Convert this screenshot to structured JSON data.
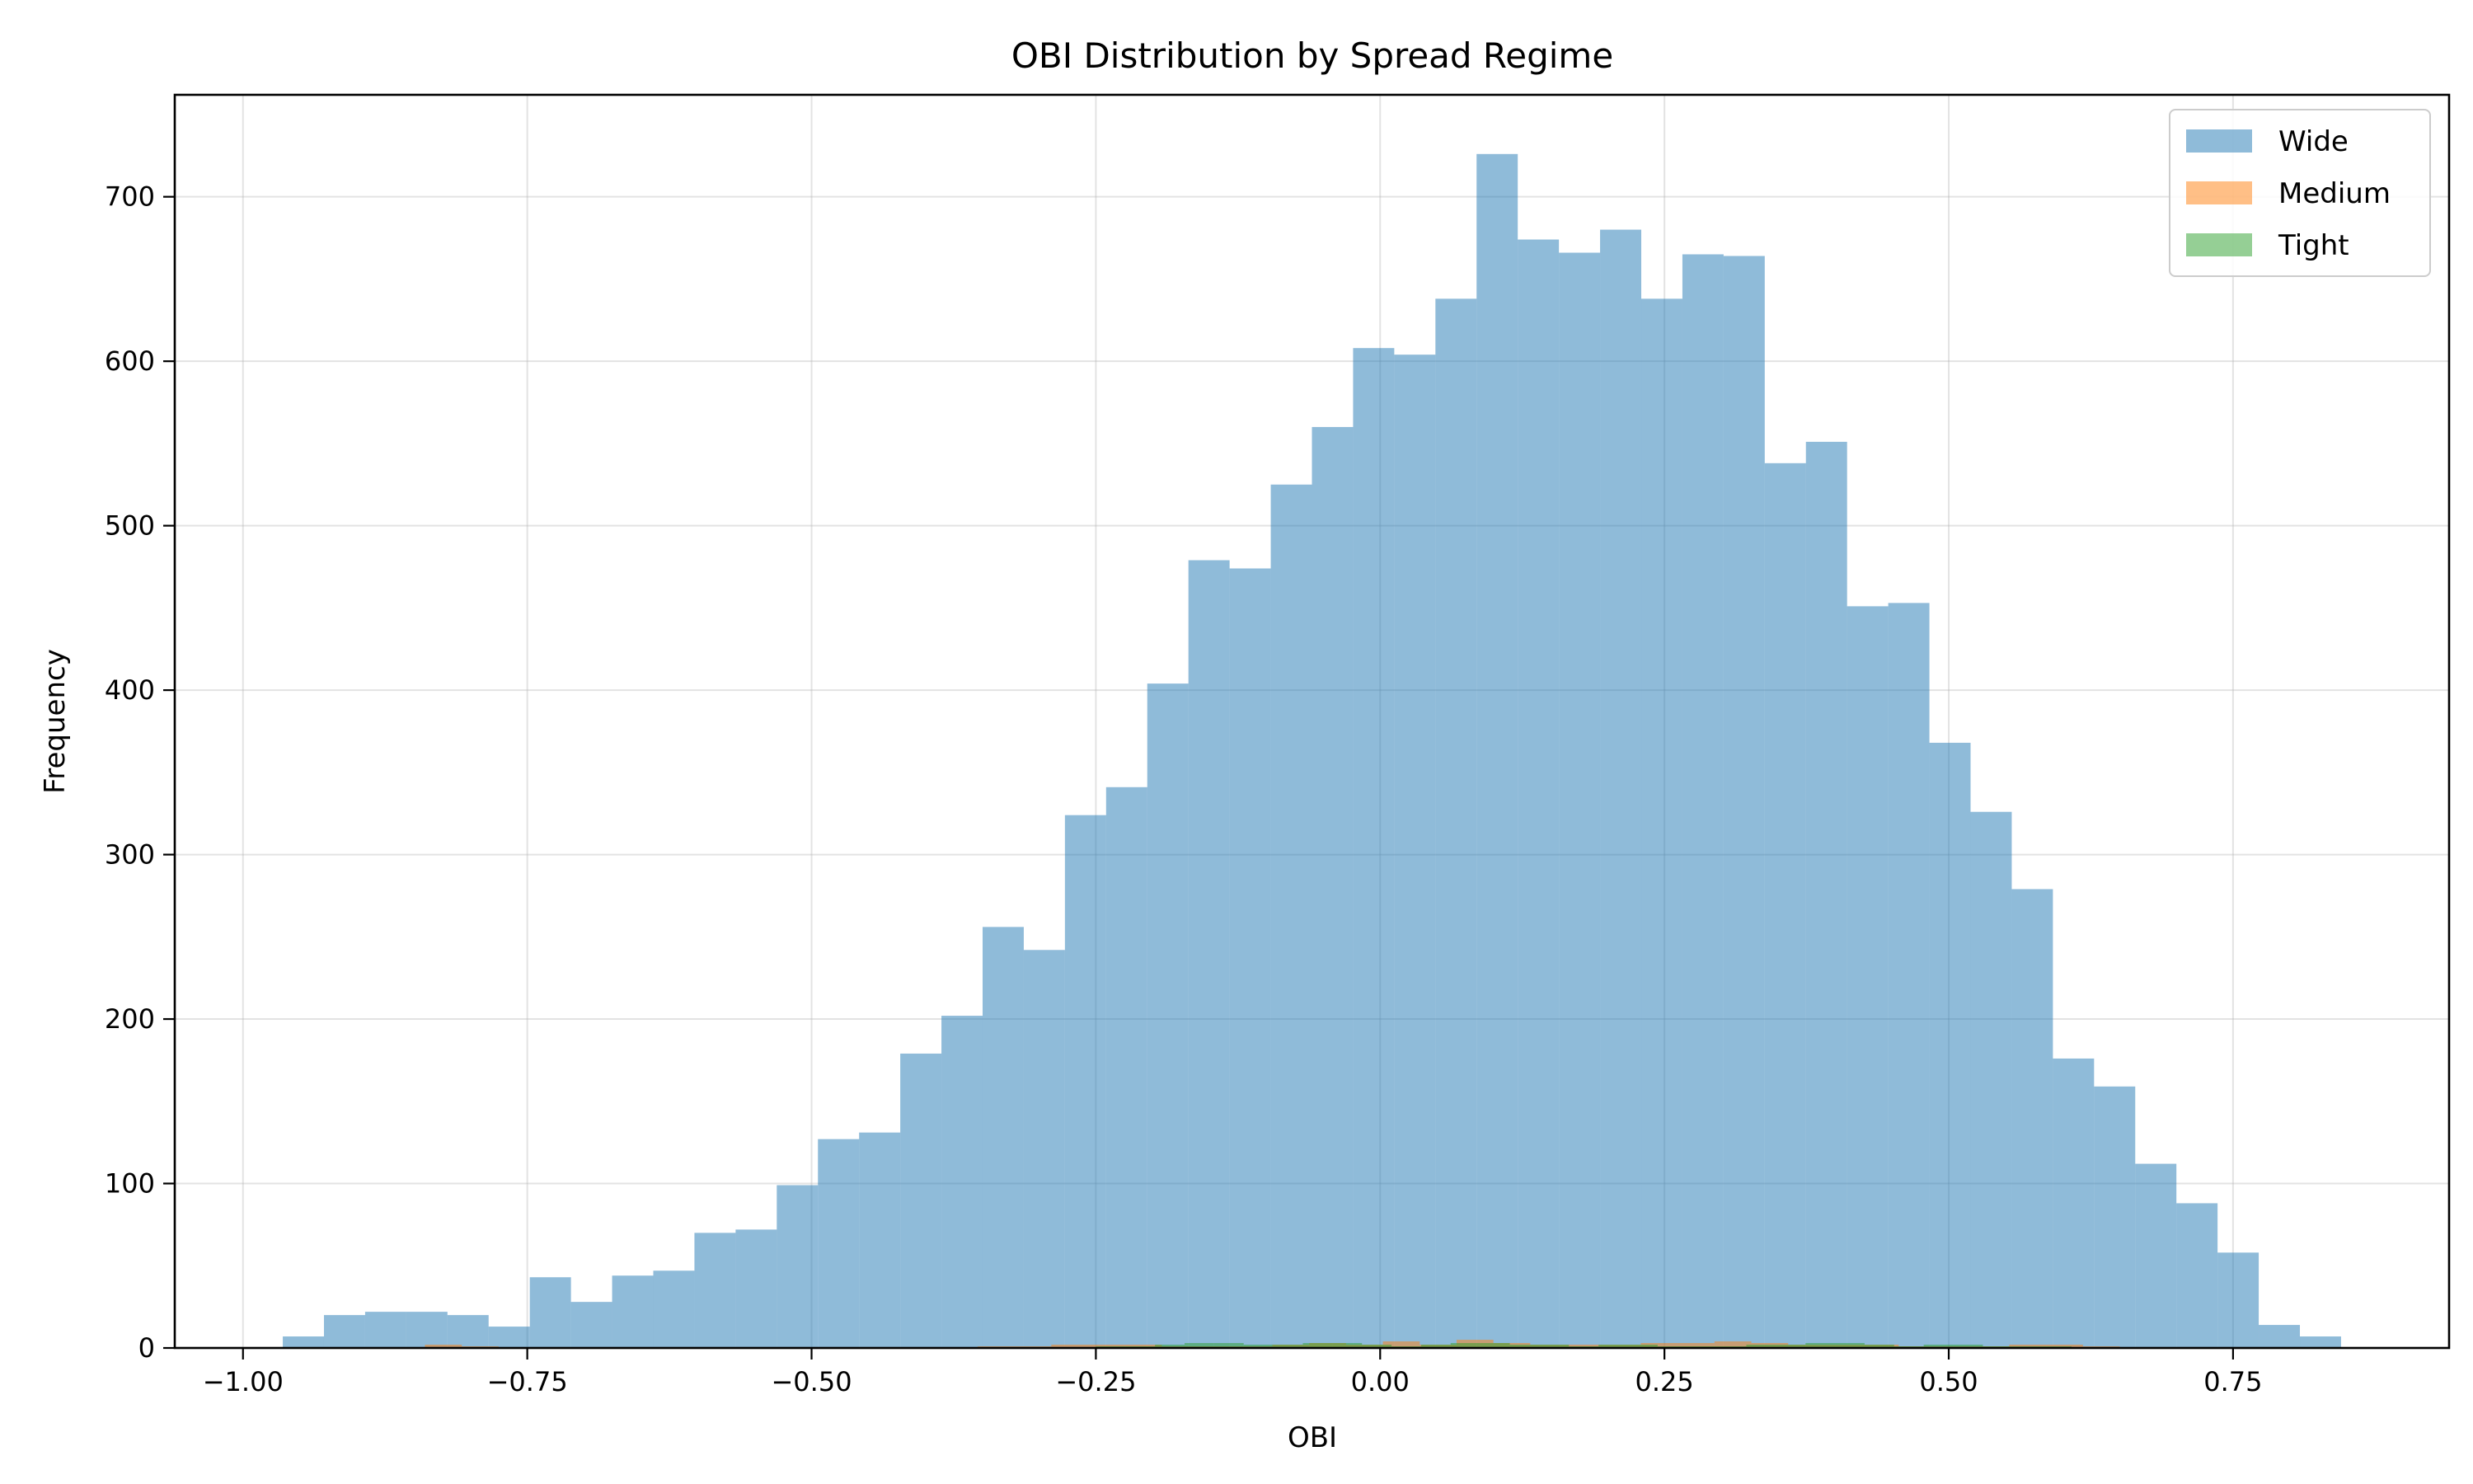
{
  "chart_data": {
    "type": "histogram",
    "title": "OBI Distribution by Spread Regime",
    "xlabel": "OBI",
    "ylabel": "Frequency",
    "xlim": [
      -1.06,
      0.94
    ],
    "ylim": [
      0,
      762
    ],
    "xticks": [
      -1.0,
      -0.75,
      -0.5,
      -0.25,
      0.0,
      0.25,
      0.5,
      0.75
    ],
    "xtick_labels": [
      "−1.00",
      "−0.75",
      "−0.50",
      "−0.25",
      "0.00",
      "0.25",
      "0.50",
      "0.75"
    ],
    "yticks": [
      0,
      100,
      200,
      300,
      400,
      500,
      600,
      700
    ],
    "ytick_labels": [
      "0",
      "100",
      "200",
      "300",
      "400",
      "500",
      "600",
      "700"
    ],
    "grid": true,
    "legend_position": "top-right",
    "series": [
      {
        "name": "Wide",
        "color": "#1f77b4",
        "alpha": 0.5,
        "bin_start": -0.965,
        "bin_width": 0.0362,
        "values": [
          7,
          20,
          22,
          22,
          20,
          13,
          43,
          28,
          44,
          47,
          70,
          72,
          99,
          127,
          131,
          179,
          202,
          256,
          242,
          324,
          341,
          404,
          479,
          474,
          525,
          560,
          608,
          604,
          638,
          726,
          674,
          666,
          680,
          638,
          665,
          664,
          538,
          551,
          451,
          453,
          368,
          326,
          279,
          176,
          159,
          112,
          88,
          58,
          14,
          7
        ]
      },
      {
        "name": "Medium",
        "color": "#ff7f0e",
        "alpha": 0.5,
        "bin_start": -0.84,
        "bin_width": 0.0324,
        "values": [
          2,
          1,
          0,
          0,
          0,
          0,
          0,
          0,
          0,
          0,
          0,
          0,
          0,
          0,
          0,
          1,
          1,
          2,
          2,
          2,
          1,
          1,
          1,
          2,
          3,
          2,
          4,
          2,
          5,
          3,
          2,
          2,
          2,
          3,
          3,
          4,
          3,
          2,
          2,
          2,
          1,
          1,
          1,
          2,
          2,
          1,
          0,
          0,
          0,
          0,
          0,
          0,
          0,
          0,
          0,
          0,
          0,
          0,
          1,
          1,
          2
        ]
      },
      {
        "name": "Tight",
        "color": "#2ca02c",
        "alpha": 0.5,
        "bin_start": -0.25,
        "bin_width": 0.026,
        "values": [
          1,
          1,
          2,
          3,
          3,
          2,
          2,
          3,
          3,
          2,
          1,
          2,
          3,
          3,
          2,
          2,
          1,
          2,
          2,
          1,
          1,
          1,
          2,
          2,
          3,
          3,
          2,
          1,
          2,
          2,
          1,
          1,
          1
        ]
      }
    ]
  }
}
